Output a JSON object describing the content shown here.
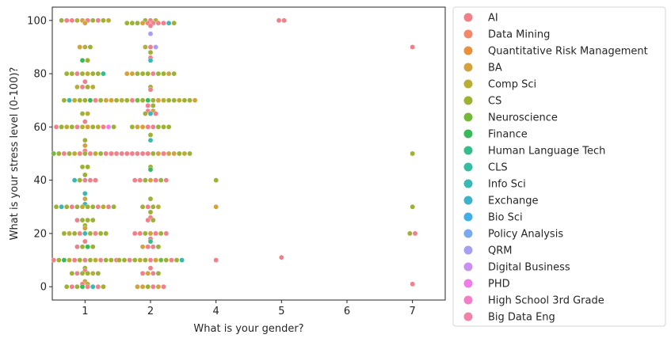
{
  "chart_data": {
    "type": "scatter",
    "style": "swarm",
    "xlabel": "What is your gender?",
    "ylabel": "What is your stress level (0-100)?",
    "x_categories": [
      "1",
      "2",
      "4",
      "5",
      "6",
      "7"
    ],
    "ylim": [
      -5,
      105
    ],
    "yticks": [
      0,
      20,
      40,
      60,
      80,
      100
    ],
    "legend_position": "outside-right",
    "grid": false,
    "legend": [
      {
        "name": "AI",
        "color": "#f0808a"
      },
      {
        "name": "Data Mining",
        "color": "#f2876a"
      },
      {
        "name": "Quantitative Risk Management",
        "color": "#e8903a"
      },
      {
        "name": "BA",
        "color": "#d2a23c"
      },
      {
        "name": "Comp Sci",
        "color": "#b8ae34"
      },
      {
        "name": "CS",
        "color": "#9db135"
      },
      {
        "name": "Neuroscience",
        "color": "#75b93a"
      },
      {
        "name": "Finance",
        "color": "#3bb95a"
      },
      {
        "name": "Human Language Tech",
        "color": "#36bb8b"
      },
      {
        "name": "CLS",
        "color": "#37bba5"
      },
      {
        "name": "Info Sci",
        "color": "#39b8b6"
      },
      {
        "name": "Exchange",
        "color": "#3cb3c8"
      },
      {
        "name": "Bio Sci",
        "color": "#41aee6"
      },
      {
        "name": "Policy Analysis",
        "color": "#7aa9f0"
      },
      {
        "name": "QRM",
        "color": "#a89ef2"
      },
      {
        "name": "Digital Business",
        "color": "#c990f0"
      },
      {
        "name": "PHD",
        "color": "#ee7de8"
      },
      {
        "name": "High School 3rd Grade",
        "color": "#f27dc8"
      },
      {
        "name": "Big Data Eng",
        "color": "#f383a6"
      }
    ],
    "groups": [
      {
        "x": "1",
        "points": [
          {
            "y": 100,
            "n": 10,
            "series": [
              "CS",
              "AI",
              "AI",
              "Comp Sci",
              "BA",
              "AI",
              "CS",
              "AI",
              "CS",
              "Comp Sci"
            ]
          },
          {
            "y": 99,
            "n": 1,
            "series": [
              "BA"
            ]
          },
          {
            "y": 90,
            "n": 3,
            "series": [
              "BA",
              "Comp Sci",
              "CS"
            ]
          },
          {
            "y": 85,
            "n": 2,
            "series": [
              "Finance",
              "CS"
            ]
          },
          {
            "y": 80,
            "n": 8,
            "series": [
              "CS",
              "CS",
              "AI",
              "CS",
              "Comp Sci",
              "CS",
              "CS",
              "Human Language Tech"
            ]
          },
          {
            "y": 77,
            "n": 1,
            "series": [
              "AI"
            ]
          },
          {
            "y": 75,
            "n": 4,
            "series": [
              "Comp Sci",
              "AI",
              "CS",
              "Comp Sci"
            ]
          },
          {
            "y": 70,
            "n": 9,
            "series": [
              "CS",
              "Info Sci",
              "Comp Sci",
              "CS",
              "CS",
              "Finance",
              "AI",
              "CS",
              "CS"
            ]
          },
          {
            "y": 65,
            "n": 2,
            "series": [
              "CS",
              "Comp Sci"
            ]
          },
          {
            "y": 62,
            "n": 1,
            "series": [
              "AI"
            ]
          },
          {
            "y": 60,
            "n": 12,
            "series": [
              "AI",
              "CS",
              "Comp Sci",
              "CS",
              "AI",
              "Comp Sci",
              "BA",
              "CS",
              "Comp Sci",
              "AI",
              "PHD",
              "CS"
            ]
          },
          {
            "y": 55,
            "n": 1,
            "series": [
              "CS"
            ]
          },
          {
            "y": 53,
            "n": 1,
            "series": [
              "BA"
            ]
          },
          {
            "y": 51,
            "n": 1,
            "series": [
              "AI"
            ]
          },
          {
            "y": 50,
            "n": 13,
            "series": [
              "Neuroscience",
              "CS",
              "AI",
              "CS",
              "Comp Sci",
              "AI",
              "CS",
              "AI",
              "Comp Sci",
              "CS",
              "AI",
              "CS",
              "Comp Sci"
            ]
          },
          {
            "y": 45,
            "n": 2,
            "series": [
              "CS",
              "CS"
            ]
          },
          {
            "y": 42,
            "n": 1,
            "series": [
              "CS"
            ]
          },
          {
            "y": 40,
            "n": 5,
            "series": [
              "Info Sci",
              "CS",
              "AI",
              "AI",
              "AI"
            ]
          },
          {
            "y": 35,
            "n": 1,
            "series": [
              "Info Sci"
            ]
          },
          {
            "y": 33,
            "n": 1,
            "series": [
              "BA"
            ]
          },
          {
            "y": 31,
            "n": 1,
            "series": [
              "Info Sci"
            ]
          },
          {
            "y": 30,
            "n": 12,
            "series": [
              "CS",
              "Info Sci",
              "CS",
              "AI",
              "CS",
              "Comp Sci",
              "CS",
              "CS",
              "AI",
              "Comp Sci",
              "AI",
              "CS"
            ]
          },
          {
            "y": 25,
            "n": 4,
            "series": [
              "AI",
              "CS",
              "CS",
              "CS"
            ]
          },
          {
            "y": 23,
            "n": 1,
            "series": [
              "CS"
            ]
          },
          {
            "y": 22,
            "n": 1,
            "series": [
              "BA"
            ]
          },
          {
            "y": 20,
            "n": 9,
            "series": [
              "CS",
              "Comp Sci",
              "CS",
              "AI",
              "Info Sci",
              "CS",
              "AI",
              "CS",
              "CS"
            ]
          },
          {
            "y": 17,
            "n": 1,
            "series": [
              "AI"
            ]
          },
          {
            "y": 15,
            "n": 4,
            "series": [
              "AI",
              "CS",
              "Finance",
              "CS"
            ]
          },
          {
            "y": 10,
            "n": 13,
            "series": [
              "AI",
              "CS",
              "Finance",
              "Comp Sci",
              "AI",
              "CS",
              "AI",
              "CS",
              "Comp Sci",
              "AI",
              "CS",
              "CS",
              "AI"
            ]
          },
          {
            "y": 7,
            "n": 1,
            "series": [
              "CS"
            ]
          },
          {
            "y": 6,
            "n": 1,
            "series": [
              "AI"
            ]
          },
          {
            "y": 5,
            "n": 6,
            "series": [
              "CS",
              "AI",
              "CS",
              "CS",
              "Comp Sci",
              "CS"
            ]
          },
          {
            "y": 2,
            "n": 1,
            "series": [
              "BA"
            ]
          },
          {
            "y": 1,
            "n": 2,
            "series": [
              "AI",
              "Comp Sci"
            ]
          },
          {
            "y": 0,
            "n": 8,
            "series": [
              "CS",
              "AI",
              "CS",
              "Finance",
              "AI",
              "Info Sci",
              "AI",
              "CS"
            ]
          }
        ]
      },
      {
        "x": "2",
        "points": [
          {
            "y": 100,
            "n": 3,
            "series": [
              "CS",
              "AI",
              "Comp Sci"
            ]
          },
          {
            "y": 99,
            "n": 10,
            "series": [
              "CS",
              "CS",
              "CS",
              "BA",
              "AI",
              "AI",
              "AI",
              "AI",
              "Info Sci",
              "CS"
            ]
          },
          {
            "y": 98,
            "n": 1,
            "series": [
              "AI"
            ]
          },
          {
            "y": 95,
            "n": 1,
            "series": [
              "QRM"
            ]
          },
          {
            "y": 90,
            "n": 3,
            "series": [
              "Comp Sci",
              "AI",
              "QRM"
            ]
          },
          {
            "y": 88,
            "n": 1,
            "series": [
              "CS"
            ]
          },
          {
            "y": 86,
            "n": 1,
            "series": [
              "AI"
            ]
          },
          {
            "y": 85,
            "n": 1,
            "series": [
              "Info Sci"
            ]
          },
          {
            "y": 80,
            "n": 10,
            "series": [
              "BA",
              "BA",
              "CS",
              "CS",
              "CS",
              "AI",
              "CS",
              "CS",
              "BA",
              "CS"
            ]
          },
          {
            "y": 75,
            "n": 1,
            "series": [
              "CS"
            ]
          },
          {
            "y": 74,
            "n": 1,
            "series": [
              "AI"
            ]
          },
          {
            "y": 70,
            "n": 18,
            "series": [
              "BA",
              "BA",
              "CS",
              "Comp Sci",
              "CS",
              "AI",
              "Neuroscience",
              "CS",
              "Finance",
              "CS",
              "BA",
              "Comp Sci",
              "CS",
              "CS",
              "Comp Sci",
              "CS",
              "CS",
              "BA"
            ]
          },
          {
            "y": 68,
            "n": 2,
            "series": [
              "AI",
              "CS"
            ]
          },
          {
            "y": 66,
            "n": 2,
            "series": [
              "AI",
              "BA"
            ]
          },
          {
            "y": 65,
            "n": 3,
            "series": [
              "CS",
              "Info Sci",
              "AI"
            ]
          },
          {
            "y": 60,
            "n": 8,
            "series": [
              "CS",
              "BA",
              "BA",
              "AI",
              "AI",
              "CS",
              "CS",
              "CS"
            ]
          },
          {
            "y": 57,
            "n": 1,
            "series": [
              "CS"
            ]
          },
          {
            "y": 55,
            "n": 1,
            "series": [
              "Info Sci"
            ]
          },
          {
            "y": 50,
            "n": 16,
            "series": [
              "AI",
              "AI",
              "AI",
              "AI",
              "AI",
              "AI",
              "AI",
              "AI",
              "CS",
              "BA",
              "AI",
              "BA",
              "BA",
              "CS",
              "Comp Sci",
              "CS"
            ]
          },
          {
            "y": 45,
            "n": 1,
            "series": [
              "CS"
            ]
          },
          {
            "y": 44,
            "n": 1,
            "series": [
              "Finance"
            ]
          },
          {
            "y": 40,
            "n": 7,
            "series": [
              "AI",
              "AI",
              "CS",
              "BA",
              "AI",
              "CS",
              "AI"
            ]
          },
          {
            "y": 33,
            "n": 1,
            "series": [
              "CS"
            ]
          },
          {
            "y": 30,
            "n": 4,
            "series": [
              "CS",
              "AI",
              "CS",
              "Comp Sci"
            ]
          },
          {
            "y": 28,
            "n": 1,
            "series": [
              "CS"
            ]
          },
          {
            "y": 26,
            "n": 1,
            "series": [
              "AI"
            ]
          },
          {
            "y": 25,
            "n": 2,
            "series": [
              "AI",
              "CS"
            ]
          },
          {
            "y": 20,
            "n": 7,
            "series": [
              "AI",
              "AI",
              "CS",
              "BA",
              "AI",
              "CS",
              "AI"
            ]
          },
          {
            "y": 18,
            "n": 1,
            "series": [
              "AI"
            ]
          },
          {
            "y": 17,
            "n": 1,
            "series": [
              "Human Language Tech"
            ]
          },
          {
            "y": 15,
            "n": 4,
            "series": [
              "BA",
              "AI",
              "AI",
              "CS"
            ]
          },
          {
            "y": 10,
            "n": 13,
            "series": [
              "CS",
              "CS",
              "AI",
              "CS",
              "Comp Sci",
              "CS",
              "AI",
              "BA",
              "Neuroscience",
              "CS",
              "AI",
              "CS",
              "CLS"
            ]
          },
          {
            "y": 7,
            "n": 1,
            "series": [
              "AI"
            ]
          },
          {
            "y": 5,
            "n": 4,
            "series": [
              "AI",
              "BA",
              "AI",
              "CS"
            ]
          },
          {
            "y": 0,
            "n": 6,
            "series": [
              "BA",
              "BA",
              "CS",
              "AI",
              "BA",
              "AI"
            ]
          }
        ]
      },
      {
        "x": "4",
        "points": [
          {
            "y": 40,
            "n": 1,
            "series": [
              "CS"
            ]
          },
          {
            "y": 30,
            "n": 1,
            "series": [
              "BA"
            ]
          },
          {
            "y": 10,
            "n": 1,
            "series": [
              "AI"
            ]
          }
        ]
      },
      {
        "x": "5",
        "points": [
          {
            "y": 100,
            "n": 2,
            "series": [
              "AI",
              "AI"
            ]
          },
          {
            "y": 11,
            "n": 1,
            "series": [
              "AI"
            ]
          }
        ]
      },
      {
        "x": "6",
        "points": []
      },
      {
        "x": "7",
        "points": [
          {
            "y": 90,
            "n": 1,
            "series": [
              "AI"
            ]
          },
          {
            "y": 50,
            "n": 1,
            "series": [
              "CS"
            ]
          },
          {
            "y": 30,
            "n": 1,
            "series": [
              "CS"
            ]
          },
          {
            "y": 20,
            "n": 2,
            "series": [
              "CS",
              "AI"
            ]
          },
          {
            "y": 1,
            "n": 1,
            "series": [
              "AI"
            ]
          }
        ]
      }
    ]
  }
}
